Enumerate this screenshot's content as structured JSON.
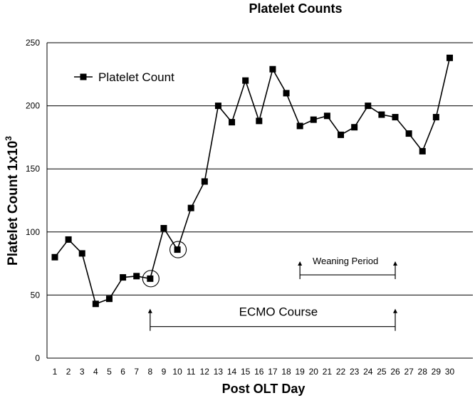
{
  "chart_data": {
    "type": "line",
    "title": "Platelet Counts",
    "xlabel": "Post OLT Day",
    "ylabel_main": "Platelet Count 1x10",
    "ylabel_sup": "3",
    "ylim": [
      0,
      250
    ],
    "yticks": [
      0,
      50,
      100,
      150,
      200,
      250
    ],
    "grid": true,
    "legend_position": "top-left",
    "x": [
      1,
      2,
      3,
      4,
      5,
      6,
      7,
      8,
      9,
      10,
      11,
      12,
      13,
      14,
      15,
      16,
      17,
      18,
      19,
      20,
      21,
      22,
      23,
      24,
      25,
      26,
      27,
      28,
      29,
      30
    ],
    "series": [
      {
        "name": "Platelet Count",
        "values": [
          80,
          94,
          83,
          43,
          47,
          64,
          65,
          63,
          103,
          86,
          119,
          140,
          200,
          187,
          220,
          188,
          229,
          210,
          184,
          189,
          192,
          177,
          183,
          200,
          193,
          191,
          178,
          164,
          191,
          238
        ],
        "color": "#000000"
      }
    ],
    "circled_days": [
      8,
      10
    ],
    "annotations": [
      {
        "label": "Weaning Period",
        "start": 19,
        "end": 26,
        "y": 66
      },
      {
        "label": "ECMO Course",
        "start": 8,
        "end": 26,
        "y": 25
      }
    ]
  }
}
